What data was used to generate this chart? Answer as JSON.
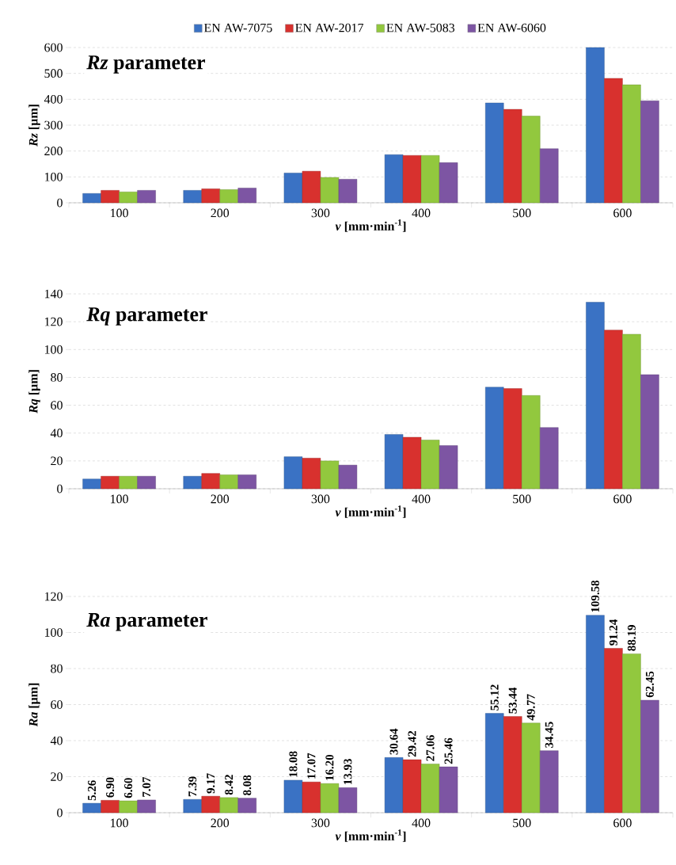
{
  "chart_data": [
    {
      "type": "bar",
      "title": "*Rz* parameter",
      "xlabel": "*v* [mm·min$^{-1}$]",
      "ylabel": "*Rz* [µm]",
      "categories": [
        "100",
        "200",
        "300",
        "400",
        "500",
        "600"
      ],
      "ylim": [
        0,
        600
      ],
      "yticks": [
        0,
        100,
        200,
        300,
        400,
        500,
        600
      ],
      "grid": "y",
      "legend": "top",
      "series": [
        {
          "name": "EN AW-7075",
          "color": "#3a72c4",
          "values": [
            36,
            48,
            115,
            186,
            386,
            600
          ]
        },
        {
          "name": "EN AW-2017",
          "color": "#d8312e",
          "values": [
            48,
            54,
            122,
            183,
            361,
            481
          ]
        },
        {
          "name": "EN AW-5083",
          "color": "#92c83e",
          "values": [
            42,
            51,
            98,
            183,
            335,
            456
          ]
        },
        {
          "name": "EN AW-6060",
          "color": "#7d55a3",
          "values": [
            48,
            57,
            91,
            155,
            209,
            394
          ]
        }
      ]
    },
    {
      "type": "bar",
      "title": "*Rq* parameter",
      "xlabel": "*v* [mm·min$^{-1}$]",
      "ylabel": "*Rq* [µm]",
      "categories": [
        "100",
        "200",
        "300",
        "400",
        "500",
        "600"
      ],
      "ylim": [
        0,
        140
      ],
      "yticks": [
        0,
        20,
        40,
        60,
        80,
        100,
        120,
        140
      ],
      "grid": "y",
      "series": [
        {
          "color": "#3a72c4",
          "values": [
            7,
            9,
            23,
            39,
            73,
            134
          ]
        },
        {
          "color": "#d8312e",
          "values": [
            9,
            11,
            22,
            37,
            72,
            114
          ]
        },
        {
          "color": "#92c83e",
          "values": [
            9,
            10,
            20,
            35,
            67,
            111
          ]
        },
        {
          "color": "#7d55a3",
          "values": [
            9,
            10,
            17,
            31,
            44,
            82
          ]
        }
      ]
    },
    {
      "type": "bar",
      "title": "*Ra* parameter",
      "xlabel": "*v* [mm·min$^{-1}$]",
      "ylabel": "*Ra* [µm]",
      "categories": [
        "100",
        "200",
        "300",
        "400",
        "500",
        "600"
      ],
      "ylim": [
        0,
        120
      ],
      "yticks": [
        0,
        20,
        40,
        60,
        80,
        100,
        120
      ],
      "grid": "y",
      "series": [
        {
          "color": "#3a72c4",
          "values": [
            5.26,
            7.39,
            18.08,
            30.64,
            55.12,
            109.58
          ],
          "value_labels": [
            "5.26",
            "7.39",
            "18.08",
            "30.64",
            "55.12",
            "109.58"
          ]
        },
        {
          "color": "#d8312e",
          "values": [
            6.9,
            9.17,
            17.07,
            29.42,
            53.44,
            91.24
          ],
          "value_labels": [
            "6.90",
            "9.17",
            "17.07",
            "29.42",
            "53.44",
            "91.24"
          ]
        },
        {
          "color": "#92c83e",
          "values": [
            6.6,
            8.42,
            16.2,
            27.06,
            49.77,
            88.19
          ],
          "value_labels": [
            "6.60",
            "8.42",
            "16.20",
            "27.06",
            "49.77",
            "88.19"
          ]
        },
        {
          "color": "#7d55a3",
          "values": [
            7.07,
            8.08,
            13.93,
            25.46,
            34.45,
            62.45
          ],
          "value_labels": [
            "7.07",
            "8.08",
            "13.93",
            "25.46",
            "34.45",
            "62.45"
          ]
        }
      ]
    }
  ]
}
